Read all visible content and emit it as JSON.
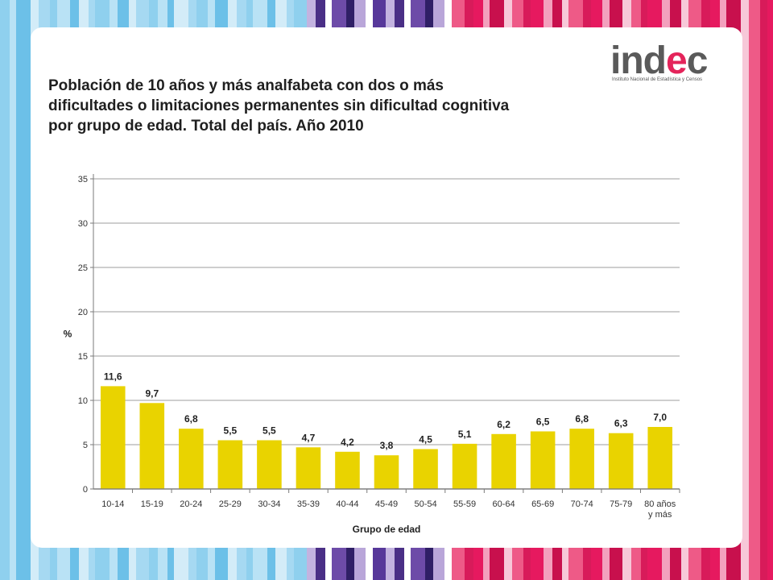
{
  "brand": {
    "logo_text": "indec",
    "logo_subtitle": "Instituto Nacional de Estadística y Censos",
    "colors": {
      "blue_stripe": "#8fd0ee",
      "purple_stripe": "#4a2f86",
      "pink_stripe": "#e6195f",
      "accent": "#e4245a"
    }
  },
  "title_lines": [
    "Población de 10 años y más analfabeta con dos o más",
    "dificultades o limitaciones permanentes sin dificultad cognitiva",
    "por grupo de edad. Total del país. Año 2010"
  ],
  "chart_data": {
    "type": "bar",
    "categories": [
      "10-14",
      "15-19",
      "20-24",
      "25-29",
      "30-34",
      "35-39",
      "40-44",
      "45-49",
      "50-54",
      "55-59",
      "60-64",
      "65-69",
      "70-74",
      "75-79",
      "80 años y más"
    ],
    "category_lines": [
      [
        "10-14"
      ],
      [
        "15-19"
      ],
      [
        "20-24"
      ],
      [
        "25-29"
      ],
      [
        "30-34"
      ],
      [
        "35-39"
      ],
      [
        "40-44"
      ],
      [
        "45-49"
      ],
      [
        "50-54"
      ],
      [
        "55-59"
      ],
      [
        "60-64"
      ],
      [
        "65-69"
      ],
      [
        "70-74"
      ],
      [
        "75-79"
      ],
      [
        "80 años",
        "y más"
      ]
    ],
    "values": [
      11.6,
      9.7,
      6.8,
      5.5,
      5.5,
      4.7,
      4.2,
      3.8,
      4.5,
      5.1,
      6.2,
      6.5,
      6.8,
      6.3,
      7.0
    ],
    "value_labels": [
      "11,6",
      "9,7",
      "6,8",
      "5,5",
      "5,5",
      "4,7",
      "4,2",
      "3,8",
      "4,5",
      "5,1",
      "6,2",
      "6,5",
      "6,8",
      "6,3",
      "7,0"
    ],
    "xlabel": "Grupo de edad",
    "ylabel": "%",
    "ylim": [
      0,
      35
    ],
    "yticks": [
      0,
      5,
      10,
      15,
      20,
      25,
      30,
      35
    ],
    "grid": true,
    "bar_color": "#e9d300",
    "grid_color": "#bdbdbd"
  }
}
